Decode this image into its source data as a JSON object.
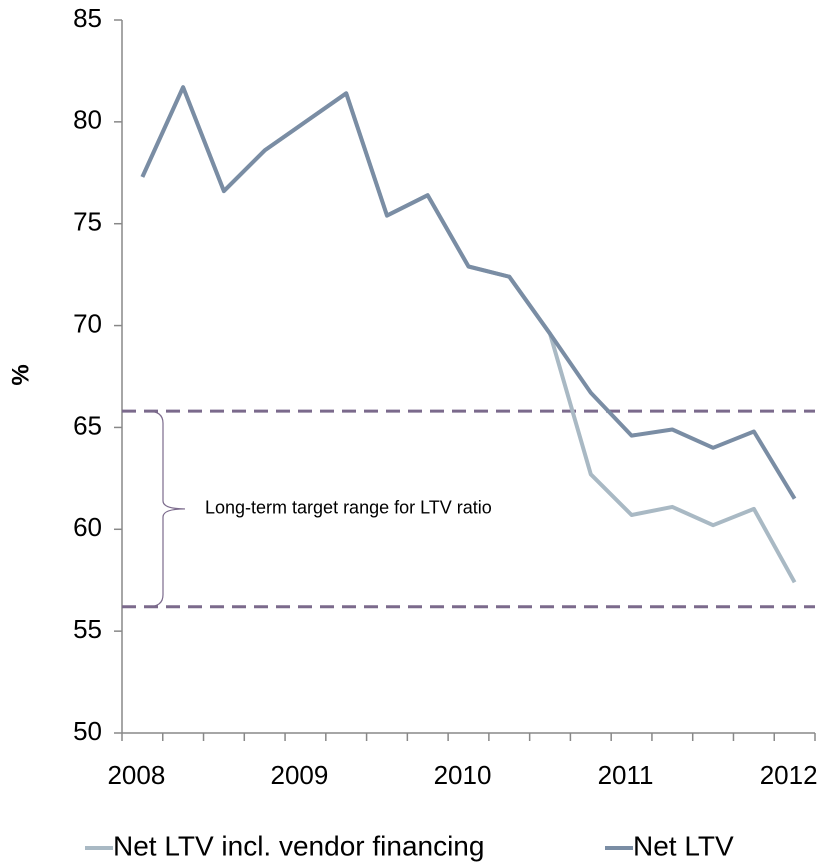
{
  "chart_data": {
    "type": "line",
    "y_label": "%",
    "categories": [
      "2008",
      null,
      null,
      null,
      "2009",
      null,
      null,
      null,
      "2010",
      null,
      null,
      null,
      "2011",
      null,
      null,
      null,
      "2012"
    ],
    "series": [
      {
        "name": "Net LTV incl. vendor financing",
        "color": "#a9b9c4",
        "values": [
          77.3,
          81.7,
          76.6,
          78.6,
          80.0,
          81.4,
          75.4,
          76.4,
          72.9,
          72.4,
          69.6,
          62.7,
          60.7,
          61.1,
          60.2,
          61.0,
          57.4
        ]
      },
      {
        "name": "Net LTV",
        "color": "#7a8da4",
        "values": [
          77.3,
          81.7,
          76.6,
          78.6,
          80.0,
          81.4,
          75.4,
          76.4,
          72.9,
          72.4,
          69.6,
          66.7,
          64.6,
          64.9,
          64.0,
          64.8,
          61.5
        ]
      }
    ],
    "ylim": [
      50,
      85
    ],
    "yticks": [
      50,
      55,
      60,
      65,
      70,
      75,
      80,
      85
    ],
    "reference_lines": [
      {
        "value": 65.8,
        "color": "#7b6a8c"
      },
      {
        "value": 56.2,
        "color": "#7b6a8c"
      }
    ],
    "annotation": "Long-term target range for LTV ratio"
  }
}
